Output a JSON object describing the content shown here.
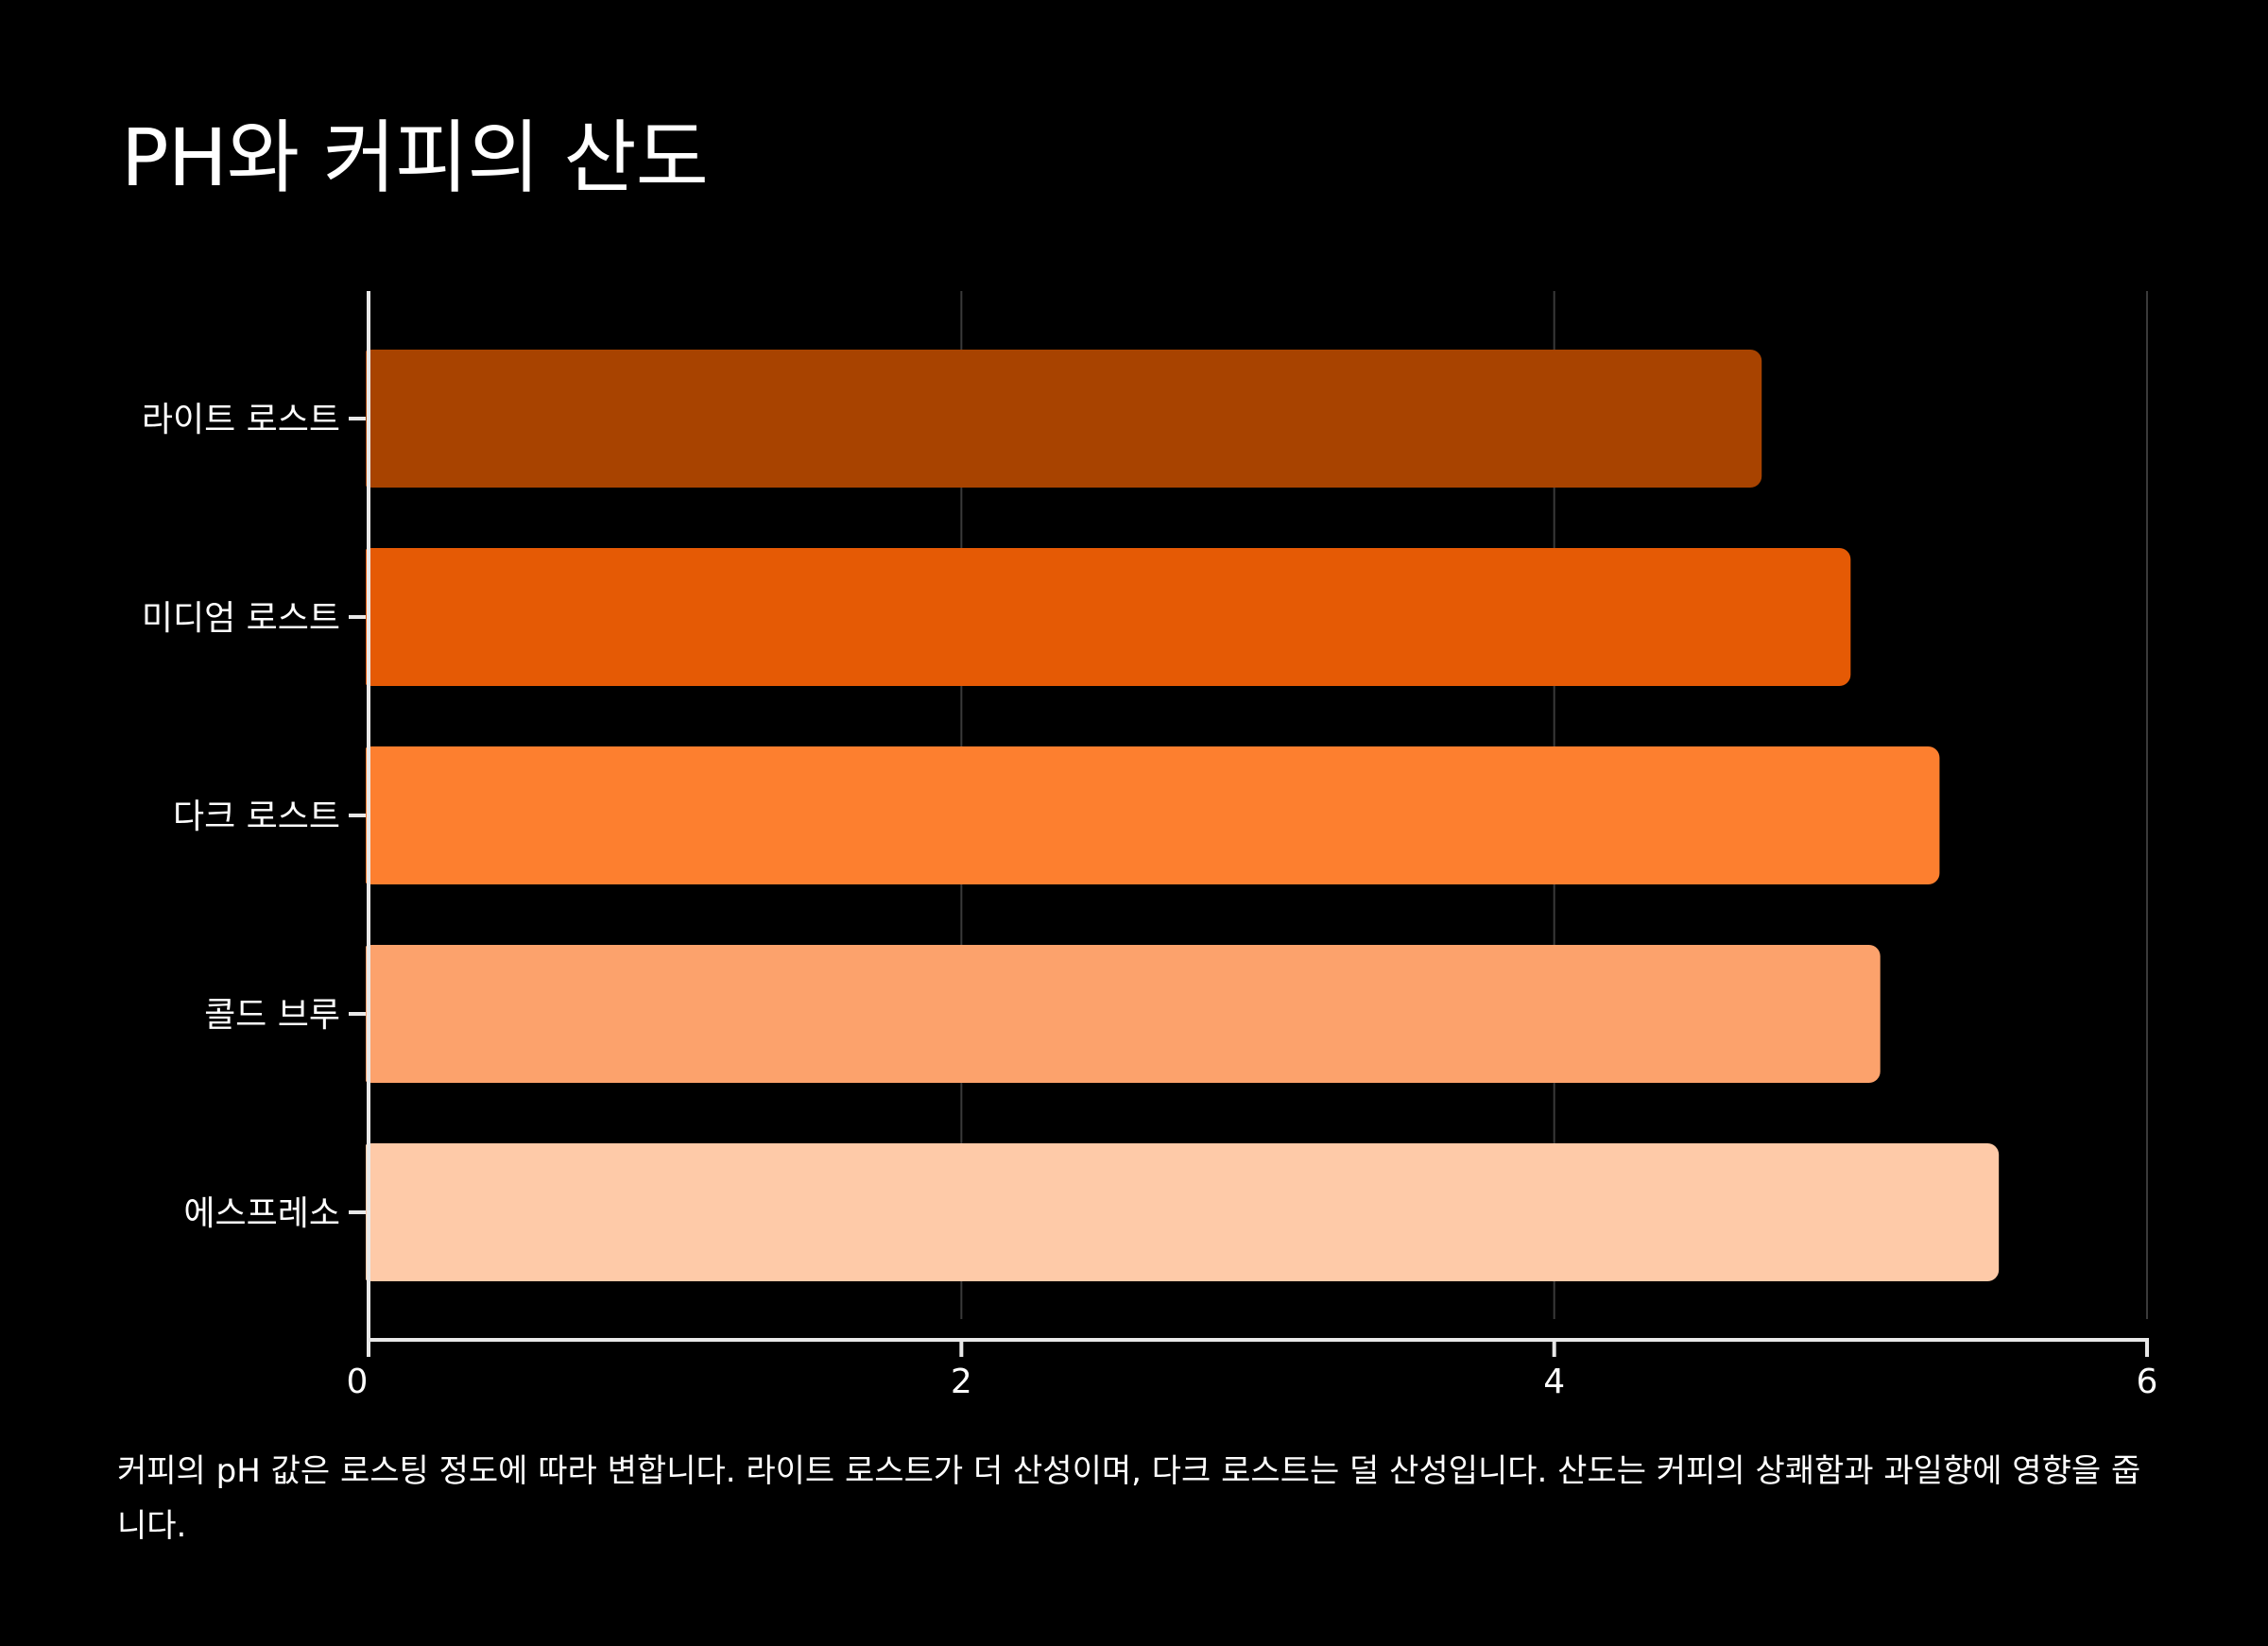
{
  "title": "PH와 커피의 산도",
  "caption": "커피의 pH 값은 로스팅 정도에 따라 변합니다. 라이트 로스트가 더 산성이며, 다크 로스트는 덜 산성입니다. 산도는 커피의 상쾌함과 과일향에 영향을 줍니다.",
  "colors": {
    "background": "#000000",
    "axis": "#e8e8e8",
    "grid": "#3a3a3a",
    "text": "#ffffff"
  },
  "chart_data": {
    "type": "bar",
    "orientation": "horizontal",
    "categories": [
      "라이트 로스트",
      "미디엄 로스트",
      "다크 로스트",
      "콜드 브루",
      "에스프레소"
    ],
    "values": [
      4.7,
      5.0,
      5.3,
      5.1,
      5.5
    ],
    "colors": [
      "#A84300",
      "#E55A05",
      "#FD7F2F",
      "#FCA26C",
      "#FECAA8"
    ],
    "xlim": [
      0,
      6
    ],
    "xticks": [
      0,
      2,
      4,
      6
    ],
    "grid": true,
    "title": "PH와 커피의 산도",
    "xlabel": "",
    "ylabel": ""
  }
}
